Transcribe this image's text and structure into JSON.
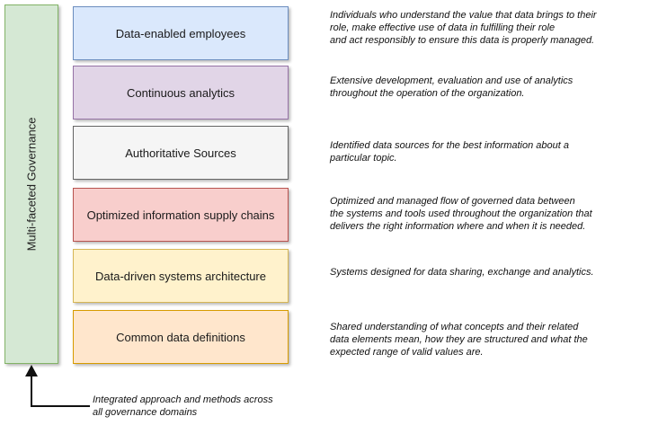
{
  "governance": {
    "label": "Multi-faceted Governance",
    "fill": "#d5e8d4",
    "stroke": "#82b366"
  },
  "layers": [
    {
      "label": "Data-enabled employees",
      "fill": "#dae8fc",
      "stroke": "#6c8ebf",
      "description": [
        "Individuals who understand the value that data brings to their",
        "role, make effective use of data in fulfilling their role",
        "and act responsibly to ensure this data is properly managed."
      ]
    },
    {
      "label": "Continuous analytics",
      "fill": "#e1d5e7",
      "stroke": "#9673a6",
      "description": [
        "Extensive development, evaluation and use of analytics",
        "throughout the operation of the organization."
      ]
    },
    {
      "label": "Authoritative Sources",
      "fill": "#f5f5f5",
      "stroke": "#666666",
      "description": [
        "Identified data sources for the best information about a",
        "particular topic."
      ]
    },
    {
      "label": "Optimized information supply chains",
      "fill": "#f8cecc",
      "stroke": "#b85450",
      "description": [
        "Optimized and managed flow of governed data between",
        "the systems and tools used throughout the organization that",
        "delivers the right information where and when it is needed."
      ]
    },
    {
      "label": "Data-driven systems architecture",
      "fill": "#fff2cc",
      "stroke": "#d6b656",
      "description": [
        "Systems designed for data sharing, exchange and analytics."
      ]
    },
    {
      "label": "Common data definitions",
      "fill": "#ffe6cc",
      "stroke": "#d79b00",
      "description": [
        "Shared understanding of what concepts and their related",
        "data elements mean, how they are structured and what the",
        "expected range of valid values are."
      ]
    }
  ],
  "note": [
    "Integrated approach and methods across",
    "all governance domains"
  ]
}
